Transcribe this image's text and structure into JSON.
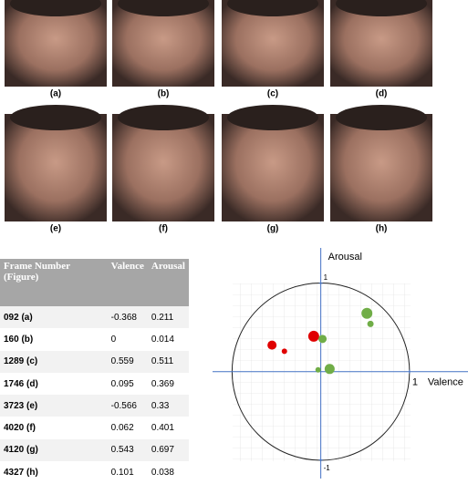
{
  "figures": {
    "labels": [
      "(a)",
      "(b)",
      "(c)",
      "(d)",
      "(e)",
      "(f)",
      "(g)",
      "(h)"
    ]
  },
  "table": {
    "header": [
      "Frame Number (Figure)",
      "Valence",
      "Arousal"
    ],
    "rows": [
      [
        "092 (a)",
        "-0.368",
        "0.211"
      ],
      [
        "160 (b)",
        "0",
        "0.014"
      ],
      [
        "1289 (c)",
        "0.559",
        "0.511"
      ],
      [
        "1746 (d)",
        "0.095",
        "0.369"
      ],
      [
        "3723 (e)",
        "-0.566",
        "0.33"
      ],
      [
        "4020 (f)",
        "0.062",
        "0.401"
      ],
      [
        "4120 (g)",
        "0.543",
        "0.697"
      ],
      [
        "4327 (h)",
        "0.101",
        "0.038"
      ]
    ]
  },
  "chart_data": {
    "type": "scatter",
    "xlabel": "Valence",
    "ylabel": "Arousal",
    "xlim": [
      -1.22,
      1.68
    ],
    "ylim": [
      -1.21,
      1.4
    ],
    "xticks": [
      1
    ],
    "yticks": [
      -1,
      1
    ],
    "series": [
      {
        "color": "#e00000",
        "x": [
          -0.08,
          -0.55,
          -0.41
        ],
        "values": [
          0.4,
          0.3,
          0.23
        ],
        "sizes": [
          6,
          5,
          3
        ]
      },
      {
        "color": "#70ad47",
        "x": [
          0.52,
          0.56,
          0.02,
          -0.03,
          0.1
        ],
        "values": [
          0.66,
          0.54,
          0.37,
          0.02,
          0.03
        ],
        "sizes": [
          6,
          3.5,
          4.5,
          3,
          5.5
        ]
      }
    ]
  }
}
